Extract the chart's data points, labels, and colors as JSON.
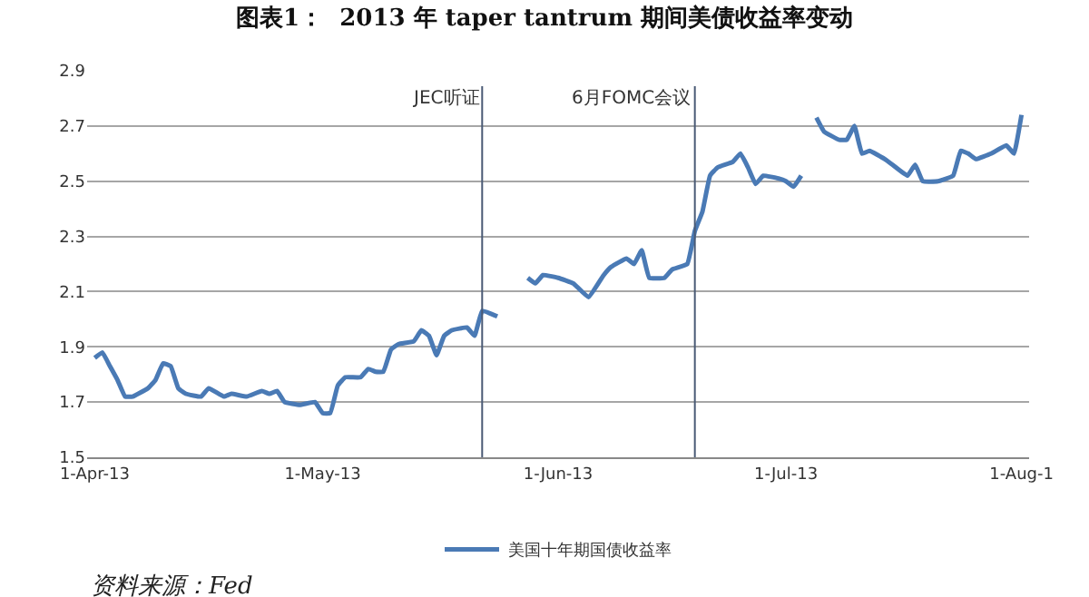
{
  "chart_data": {
    "type": "line",
    "title": "图表1：  2013 年 taper tantrum 期间美债收益率变动",
    "x": [
      "2013-04-01",
      "2013-04-02",
      "2013-04-03",
      "2013-04-04",
      "2013-04-05",
      "2013-04-06",
      "2013-04-08",
      "2013-04-09",
      "2013-04-10",
      "2013-04-11",
      "2013-04-12",
      "2013-04-13",
      "2013-04-15",
      "2013-04-16",
      "2013-04-18",
      "2013-04-19",
      "2013-04-21",
      "2013-04-23",
      "2013-04-24",
      "2013-04-25",
      "2013-04-26",
      "2013-04-28",
      "2013-04-30",
      "2013-05-01",
      "2013-05-02",
      "2013-05-03",
      "2013-05-04",
      "2013-05-06",
      "2013-05-07",
      "2013-05-08",
      "2013-05-09",
      "2013-05-10",
      "2013-05-11",
      "2013-05-13",
      "2013-05-14",
      "2013-05-15",
      "2013-05-16",
      "2013-05-17",
      "2013-05-18",
      "2013-05-20",
      "2013-05-21",
      "2013-05-22",
      "2013-05-24",
      "2013-05-26",
      "2013-05-28",
      "2013-05-29",
      "2013-05-30",
      "2013-06-01",
      "2013-06-03",
      "2013-06-05",
      "2013-06-07",
      "2013-06-08",
      "2013-06-10",
      "2013-06-11",
      "2013-06-12",
      "2013-06-13",
      "2013-06-15",
      "2013-06-16",
      "2013-06-18",
      "2013-06-19",
      "2013-06-20",
      "2013-06-21",
      "2013-06-22",
      "2013-06-24",
      "2013-06-25",
      "2013-06-26",
      "2013-06-27",
      "2013-06-28",
      "2013-06-30",
      "2013-07-01",
      "2013-07-02",
      "2013-07-03",
      "2013-07-04",
      "2013-07-05",
      "2013-07-06",
      "2013-07-08",
      "2013-07-09",
      "2013-07-10",
      "2013-07-11",
      "2013-07-12",
      "2013-07-14",
      "2013-07-15",
      "2013-07-17",
      "2013-07-18",
      "2013-07-19",
      "2013-07-21",
      "2013-07-23",
      "2013-07-24",
      "2013-07-25",
      "2013-07-26",
      "2013-07-28",
      "2013-07-30",
      "2013-07-31",
      "2013-08-01"
    ],
    "series": [
      {
        "name": "美国十年期国债收益率",
        "color": "#4a7ab5",
        "values": [
          1.86,
          1.88,
          1.83,
          1.78,
          1.72,
          1.72,
          1.75,
          1.78,
          1.84,
          1.83,
          1.75,
          1.73,
          1.72,
          1.75,
          1.72,
          1.73,
          1.72,
          1.74,
          1.73,
          1.74,
          1.7,
          1.69,
          1.7,
          1.66,
          1.66,
          1.76,
          1.79,
          1.79,
          1.82,
          1.81,
          1.81,
          1.89,
          1.91,
          1.92,
          1.96,
          1.94,
          1.87,
          1.94,
          1.96,
          1.97,
          1.94,
          2.03,
          2.01,
          null,
          2.15,
          2.13,
          2.16,
          2.15,
          2.13,
          2.08,
          2.16,
          2.19,
          2.22,
          2.2,
          2.25,
          2.15,
          2.15,
          2.18,
          2.2,
          2.32,
          2.39,
          2.52,
          2.55,
          2.57,
          2.6,
          2.55,
          2.49,
          2.52,
          2.51,
          2.5,
          2.48,
          2.52,
          null,
          2.73,
          2.68,
          2.65,
          2.65,
          2.7,
          2.6,
          2.61,
          2.58,
          2.56,
          2.52,
          2.56,
          2.5,
          2.5,
          2.52,
          2.61,
          2.6,
          2.58,
          2.6,
          2.63,
          2.6,
          2.74
        ]
      }
    ],
    "xlim": [
      "2013-03-31",
      "2013-08-02"
    ],
    "xticks": [
      {
        "value": "2013-04-01",
        "label": "1-Apr-13"
      },
      {
        "value": "2013-05-01",
        "label": "1-May-13"
      },
      {
        "value": "2013-06-01",
        "label": "1-Jun-13"
      },
      {
        "value": "2013-07-01",
        "label": "1-Jul-13"
      },
      {
        "value": "2013-08-01",
        "label": "1-Aug-1"
      }
    ],
    "ylim": [
      1.5,
      2.9
    ],
    "yticks": [
      1.5,
      1.7,
      1.9,
      2.1,
      2.3,
      2.5,
      2.7,
      2.9
    ],
    "grid": "y",
    "legend": "bottom",
    "marker": "none",
    "line_style": "solid",
    "ref_lines": [
      {
        "axis": "x",
        "value": "2013-05-22",
        "label": "JEC听证",
        "color": "#4a5a75"
      },
      {
        "axis": "x",
        "value": "2013-06-19",
        "label": "6月FOMC会议",
        "color": "#4a5a75"
      }
    ],
    "annotations": [
      "资料来源：Fed"
    ]
  }
}
